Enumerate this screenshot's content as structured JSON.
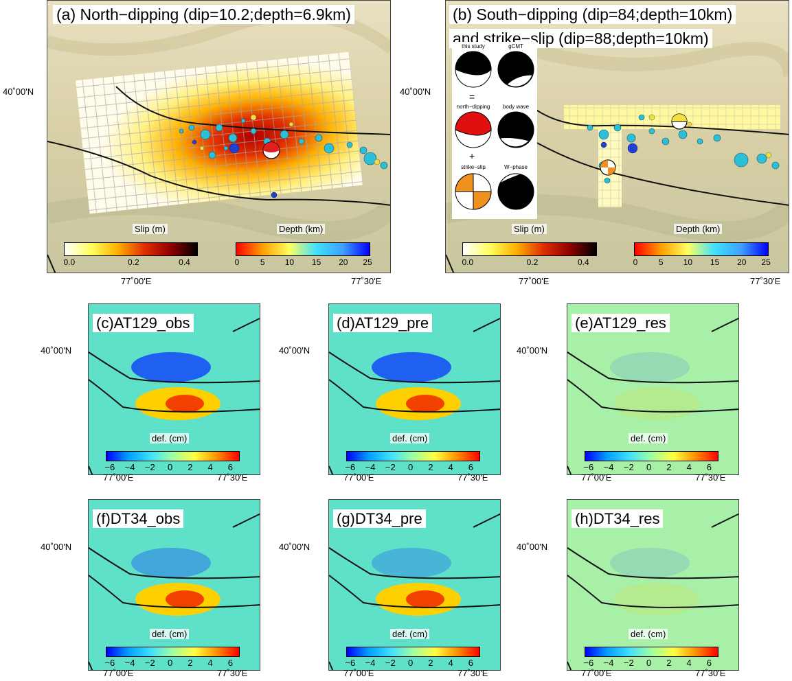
{
  "panels": {
    "a": {
      "title": "(a) North−dipping (dip=10.2;depth=6.9km)",
      "lat_label": "40˚00'N",
      "lon_labels": [
        "77˚00'E",
        "77˚30'E"
      ],
      "slip_label": "Slip (m)",
      "slip_ticks": [
        "0.0",
        "0.2",
        "0.4"
      ],
      "depth_label": "Depth (km)",
      "depth_ticks": [
        "0",
        "5",
        "10",
        "15",
        "20",
        "25"
      ]
    },
    "b": {
      "title_line1": "(b) South−dipping (dip=84;depth=10km)",
      "title_line2": "and strike−slip (dip=88;depth=10km)",
      "lat_label": "40˚00'N",
      "lon_labels": [
        "77˚00'E",
        "77˚30'E"
      ],
      "slip_label": "Slip (m)",
      "slip_ticks": [
        "0.0",
        "0.2",
        "0.4"
      ],
      "depth_label": "Depth (km)",
      "depth_ticks": [
        "0",
        "5",
        "10",
        "15",
        "20",
        "25"
      ],
      "mechanisms": {
        "this_study": "this study",
        "gcmt": "gCMT",
        "equals": "=",
        "north_dipping": "north−dipping",
        "body_wave": "body wave",
        "plus": "+",
        "strike_slip": "strike−slip",
        "w_phase": "W−phase"
      }
    },
    "c": {
      "title": "(c)AT129_obs"
    },
    "d": {
      "title": "(d)AT129_pre"
    },
    "e": {
      "title": "(e)AT129_res"
    },
    "f": {
      "title": "(f)DT34_obs"
    },
    "g": {
      "title": "(g)DT34_pre"
    },
    "h": {
      "title": "(h)DT34_res"
    }
  },
  "small": {
    "lat_label": "40˚00'N",
    "lon_labels": [
      "77˚00'E",
      "77˚30'E"
    ],
    "cb_label": "def. (cm)",
    "cb_ticks": [
      "−6",
      "−4",
      "−2",
      "0",
      "2",
      "4",
      "6"
    ]
  },
  "colors": {
    "slip_scale": [
      "#ffffff",
      "#ffff60",
      "#ffb000",
      "#e03000",
      "#900000",
      "#000000"
    ],
    "depth_scale": [
      "#ff0000",
      "#ffa000",
      "#ffff60",
      "#40e0ff",
      "#40a0ff",
      "#0000ff"
    ],
    "def_scale": [
      "#0000ff",
      "#00a0ff",
      "#40e0ff",
      "#a0ffa0",
      "#ffff40",
      "#ff9000",
      "#ff0000"
    ],
    "faults": "#111111"
  }
}
